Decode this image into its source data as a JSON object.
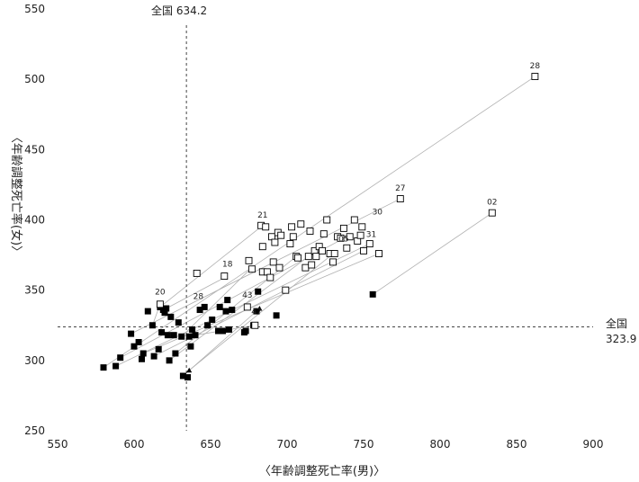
{
  "chart_data": {
    "type": "scatter",
    "xlabel": "〈年齢調整死亡率(男)〉",
    "ylabel": "〈年齢調整死亡率(女)〉",
    "xlim": [
      550,
      900
    ],
    "ylim": [
      250,
      550
    ],
    "xticks": [
      550,
      600,
      650,
      700,
      750,
      800,
      850,
      900
    ],
    "yticks": [
      250,
      300,
      350,
      400,
      450,
      500,
      550
    ],
    "grid": false,
    "reference_lines": [
      {
        "axis": "x",
        "value": 634.2,
        "label": "全国 634.2"
      },
      {
        "axis": "y",
        "value": 323.9,
        "label": "全国 323.9"
      }
    ],
    "reference_label_y": {
      "line1": "全国",
      "line2": "323.9"
    },
    "series": [
      {
        "marker": "filled-square",
        "points": [
          [
            580,
            295
          ],
          [
            588,
            296
          ],
          [
            591,
            302
          ],
          [
            598,
            319
          ],
          [
            600,
            310
          ],
          [
            603,
            313
          ],
          [
            605,
            301
          ],
          [
            606,
            305
          ],
          [
            609,
            335
          ],
          [
            612,
            325
          ],
          [
            613,
            303
          ],
          [
            616,
            308
          ],
          [
            617,
            338
          ],
          [
            618,
            320
          ],
          [
            619,
            336
          ],
          [
            620,
            334
          ],
          [
            621,
            337
          ],
          [
            622,
            318
          ],
          [
            623,
            300
          ],
          [
            624,
            331
          ],
          [
            626,
            318
          ],
          [
            627,
            305
          ],
          [
            629,
            327
          ],
          [
            631,
            317
          ],
          [
            632,
            289
          ],
          [
            635,
            288
          ],
          [
            636,
            317
          ],
          [
            637,
            310
          ],
          [
            638,
            322
          ],
          [
            640,
            318
          ],
          [
            643,
            336
          ],
          [
            646,
            338
          ],
          [
            648,
            325
          ],
          [
            651,
            329
          ],
          [
            655,
            321
          ],
          [
            656,
            338
          ],
          [
            658,
            321
          ],
          [
            660,
            335
          ],
          [
            661,
            343
          ],
          [
            662,
            322
          ],
          [
            664,
            336
          ],
          [
            672,
            320
          ],
          [
            673,
            321
          ],
          [
            678,
            325
          ],
          [
            680,
            335
          ],
          [
            681,
            349
          ],
          [
            693,
            332
          ],
          [
            756,
            347
          ]
        ]
      },
      {
        "marker": "open-square",
        "points": [
          [
            617,
            340
          ],
          [
            641,
            362
          ],
          [
            659,
            360
          ],
          [
            674,
            338
          ],
          [
            675,
            371
          ],
          [
            677,
            365
          ],
          [
            679,
            325
          ],
          [
            683,
            396
          ],
          [
            684,
            363
          ],
          [
            684,
            381
          ],
          [
            686,
            395
          ],
          [
            687,
            363
          ],
          [
            689,
            359
          ],
          [
            690,
            388
          ],
          [
            691,
            370
          ],
          [
            692,
            384
          ],
          [
            694,
            391
          ],
          [
            695,
            366
          ],
          [
            696,
            389
          ],
          [
            699,
            350
          ],
          [
            702,
            383
          ],
          [
            703,
            395
          ],
          [
            704,
            388
          ],
          [
            706,
            374
          ],
          [
            707,
            373
          ],
          [
            709,
            397
          ],
          [
            712,
            366
          ],
          [
            714,
            374
          ],
          [
            715,
            392
          ],
          [
            716,
            368
          ],
          [
            718,
            378
          ],
          [
            719,
            374
          ],
          [
            721,
            381
          ],
          [
            723,
            378
          ],
          [
            724,
            390
          ],
          [
            726,
            400
          ],
          [
            728,
            376
          ],
          [
            730,
            370
          ],
          [
            731,
            376
          ],
          [
            733,
            388
          ],
          [
            735,
            387
          ],
          [
            737,
            394
          ],
          [
            739,
            380
          ],
          [
            741,
            388
          ],
          [
            744,
            400
          ],
          [
            746,
            385
          ],
          [
            748,
            389
          ],
          [
            749,
            395
          ],
          [
            750,
            378
          ],
          [
            754,
            383
          ],
          [
            760,
            376
          ],
          [
            774,
            415
          ],
          [
            834,
            405
          ],
          [
            862,
            502
          ]
        ]
      },
      {
        "marker": "filled-triangle",
        "points": [
          [
            636,
            293
          ],
          [
            682,
            337
          ]
        ]
      }
    ],
    "labels": [
      {
        "text": "28",
        "x": 862,
        "y": 502
      },
      {
        "text": "27",
        "x": 774,
        "y": 415
      },
      {
        "text": "02",
        "x": 834,
        "y": 405
      },
      {
        "text": "30",
        "x": 759,
        "y": 398
      },
      {
        "text": "21",
        "x": 684,
        "y": 396
      },
      {
        "text": "05",
        "x": 737,
        "y": 379
      },
      {
        "text": "31",
        "x": 755,
        "y": 382
      },
      {
        "text": "18",
        "x": 661,
        "y": 361
      },
      {
        "text": "20",
        "x": 617,
        "y": 341
      },
      {
        "text": "43",
        "x": 674,
        "y": 339
      },
      {
        "text": "28",
        "x": 642,
        "y": 338
      },
      {
        "text": "47",
        "x": 680,
        "y": 327
      }
    ],
    "connectors": [
      [
        [
          580,
          295
        ],
        [
          862,
          502
        ]
      ],
      [
        [
          598,
          319
        ],
        [
          774,
          415
        ]
      ],
      [
        [
          756,
          347
        ],
        [
          834,
          405
        ]
      ],
      [
        [
          617,
          338
        ],
        [
          684,
          396
        ]
      ],
      [
        [
          621,
          337
        ],
        [
          661,
          360
        ]
      ],
      [
        [
          588,
          296
        ],
        [
          754,
          383
        ]
      ],
      [
        [
          591,
          302
        ],
        [
          739,
          388
        ]
      ],
      [
        [
          606,
          305
        ],
        [
          760,
          376
        ]
      ],
      [
        [
          613,
          303
        ],
        [
          750,
          378
        ]
      ],
      [
        [
          636,
          293
        ],
        [
          729,
          375
        ]
      ],
      [
        [
          623,
          300
        ],
        [
          714,
          374
        ]
      ],
      [
        [
          627,
          305
        ],
        [
          706,
          374
        ]
      ],
      [
        [
          631,
          317
        ],
        [
          676,
          365
        ]
      ],
      [
        [
          640,
          318
        ],
        [
          679,
          325
        ]
      ],
      [
        [
          632,
          289
        ],
        [
          682,
          337
        ]
      ],
      [
        [
          612,
          325
        ],
        [
          617,
          340
        ]
      ]
    ]
  }
}
